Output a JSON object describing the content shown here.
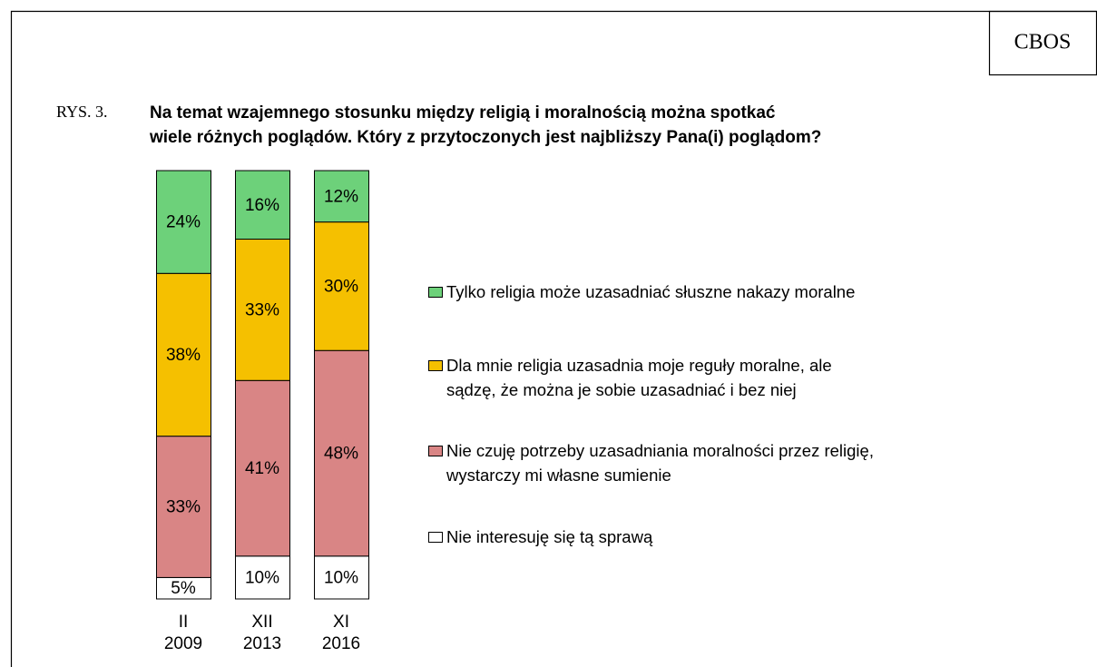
{
  "chart_data": {
    "type": "stacked_bar",
    "source": "CBOS",
    "label": "RYS. 3.",
    "title": [
      "Na temat wzajemnego stosunku między religią i moralnością można spotkać",
      "wiele różnych poglądów. Który z przytoczonych jest najbliższy Pana(i) poglądom?"
    ],
    "categories": [
      [
        "II",
        "2009"
      ],
      [
        "XII",
        "2013"
      ],
      [
        "XI",
        "2016"
      ]
    ],
    "ylim": [
      0,
      100
    ],
    "series": [
      {
        "name": "Nie interesuję się tą sprawą",
        "color": "#ffffff",
        "values": [
          5,
          10,
          10
        ],
        "value_labels": [
          "5%",
          "10%",
          "10%"
        ]
      },
      {
        "name": "Nie czuję potrzeby uzasadniania moralności przez religię, wystarczy mi własne sumienie",
        "color": "#d98585",
        "values": [
          33,
          41,
          48
        ],
        "value_labels": [
          "33%",
          "41%",
          "48%"
        ]
      },
      {
        "name": "Dla mnie religia uzasadnia moje reguły moralne, ale sądzę, że można je sobie uzasadniać i bez niej",
        "color": "#f5c000",
        "values": [
          38,
          33,
          30
        ],
        "value_labels": [
          "38%",
          "33%",
          "30%"
        ]
      },
      {
        "name": "Tylko religia może uzasadniać słuszne nakazy moralne",
        "color": "#6dd17a",
        "values": [
          24,
          16,
          12
        ],
        "value_labels": [
          "24%",
          "16%",
          "12%"
        ]
      }
    ]
  }
}
